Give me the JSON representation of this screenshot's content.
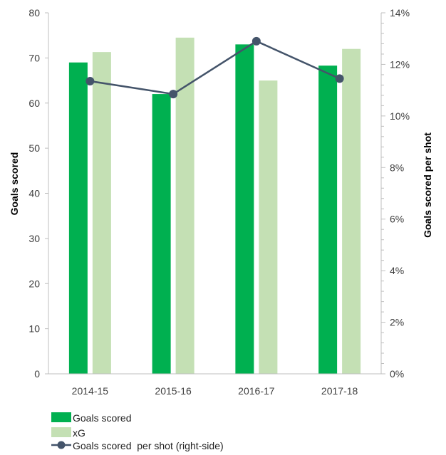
{
  "chart_data": {
    "type": "bar",
    "categories": [
      "2014-15",
      "2015-16",
      "2016-17",
      "2017-18"
    ],
    "series": [
      {
        "name": "Goals scored",
        "kind": "bar",
        "axis": "left",
        "color": "#00b050",
        "values": [
          69,
          62,
          73,
          68.3
        ]
      },
      {
        "name": "xG",
        "kind": "bar",
        "axis": "left",
        "color": "#c4e0b4",
        "values": [
          71.3,
          74.5,
          65,
          72
        ]
      },
      {
        "name": "Goals scored  per shot (right-side)",
        "kind": "line",
        "axis": "right",
        "color": "#44546a",
        "values": [
          11.35,
          10.85,
          12.9,
          11.45
        ]
      }
    ],
    "ylabel": "Goals scored",
    "y2label": "Goals scored per shot",
    "ylim": [
      0,
      80
    ],
    "y2lim": [
      0,
      14
    ],
    "yticks": [
      "0",
      "10",
      "20",
      "30",
      "40",
      "50",
      "60",
      "70",
      "80"
    ],
    "y2ticks": [
      "0%",
      "2%",
      "4%",
      "6%",
      "8%",
      "10%",
      "12%",
      "14%"
    ],
    "legend_position": "bottom-left"
  }
}
